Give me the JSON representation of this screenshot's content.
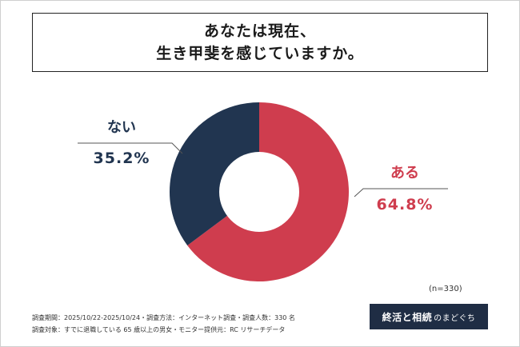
{
  "title": {
    "line1": "あなたは現在、",
    "line2": "生き甲斐を感じていますか。"
  },
  "chart_data": {
    "type": "pie",
    "variant": "donut",
    "slices": [
      {
        "label": "ある",
        "value": 64.8,
        "display": "64.8%",
        "color": "#cf3d4e"
      },
      {
        "label": "ない",
        "value": 35.2,
        "display": "35.2%",
        "color": "#213550"
      }
    ],
    "start_angle_deg": 0,
    "direction": "clockwise"
  },
  "sample_size": "(n=330)",
  "footer": {
    "line1": "調査期間：2025/10/22-2025/10/24・調査方法：インターネット調査・調査人数：330 名",
    "line2": "調査対象：すでに退職している 65 歳以上の男女・モニター提供元：RC リサーチデータ"
  },
  "brand": {
    "main": "終活と相続",
    "sub": "のまどぐち"
  },
  "colors": {
    "navy": "#213550",
    "red": "#cf3d4e"
  }
}
